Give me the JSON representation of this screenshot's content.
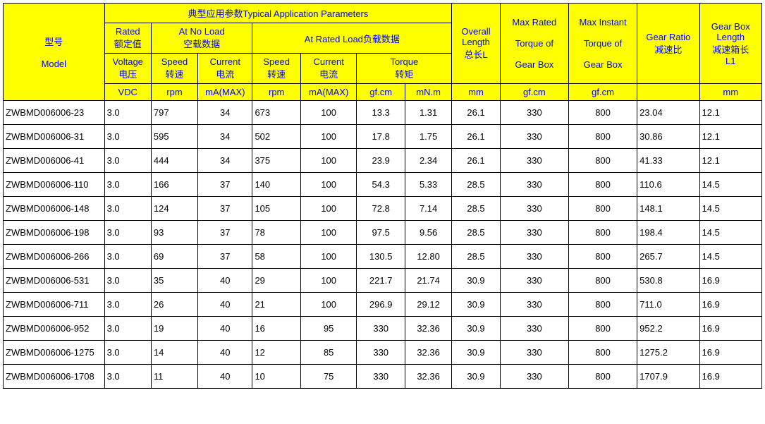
{
  "headers": {
    "model": "型号<br><br>Model",
    "typical": "典型应用参数Typical Application Parameters",
    "rated": "Rated<br>额定值",
    "noload": "At No Load<br>空载数据",
    "ratedload": "At Rated Load负载数据",
    "voltage": "Voltage<br>电压",
    "speed": "Speed<br>转速",
    "current": "Current<br>电流",
    "torque": "Torque<br>转矩",
    "overall": "Overall<br>Length<br>总长L",
    "maxrated": "Max Rated<br><br>Torque of<br><br>Gear Box",
    "maxinst": "Max Instant<br><br>Torque of<br><br>Gear Box",
    "ratio": "Gear Ratio<br>减速比",
    "boxlen": "Gear Box<br>Length<br>减速箱长<br>L1"
  },
  "units": {
    "vdc": "VDC",
    "rpm": "rpm",
    "mamax": "mA(MAX)",
    "gfcm": "gf.cm",
    "mnm": "mN.m",
    "mm": "mm"
  },
  "align": [
    "left",
    "left",
    "left",
    "center",
    "left",
    "center",
    "center",
    "center",
    "center",
    "center",
    "center",
    "left",
    "left"
  ],
  "rows": [
    [
      "ZWBMD006006-23",
      "3.0",
      "797",
      "34",
      "673",
      "100",
      "13.3",
      "1.31",
      "26.1",
      "330",
      "800",
      "23.04",
      "12.1"
    ],
    [
      "ZWBMD006006-31",
      "3.0",
      "595",
      "34",
      "502",
      "100",
      "17.8",
      "1.75",
      "26.1",
      "330",
      "800",
      "30.86",
      "12.1"
    ],
    [
      "ZWBMD006006-41",
      "3.0",
      "444",
      "34",
      "375",
      "100",
      "23.9",
      "2.34",
      "26.1",
      "330",
      "800",
      "41.33",
      "12.1"
    ],
    [
      "ZWBMD006006-110",
      "3.0",
      "166",
      "37",
      "140",
      "100",
      "54.3",
      "5.33",
      "28.5",
      "330",
      "800",
      "110.6",
      "14.5"
    ],
    [
      "ZWBMD006006-148",
      "3.0",
      "124",
      "37",
      "105",
      "100",
      "72.8",
      "7.14",
      "28.5",
      "330",
      "800",
      "148.1",
      "14.5"
    ],
    [
      "ZWBMD006006-198",
      "3.0",
      "93",
      "37",
      "78",
      "100",
      "97.5",
      "9.56",
      "28.5",
      "330",
      "800",
      "198.4",
      "14.5"
    ],
    [
      "ZWBMD006006-266",
      "3.0",
      "69",
      "37",
      "58",
      "100",
      "130.5",
      "12.80",
      "28.5",
      "330",
      "800",
      "265.7",
      "14.5"
    ],
    [
      "ZWBMD006006-531",
      "3.0",
      "35",
      "40",
      "29",
      "100",
      "221.7",
      "21.74",
      "30.9",
      "330",
      "800",
      "530.8",
      "16.9"
    ],
    [
      "ZWBMD006006-711",
      "3.0",
      "26",
      "40",
      "21",
      "100",
      "296.9",
      "29.12",
      "30.9",
      "330",
      "800",
      "711.0",
      "16.9"
    ],
    [
      "ZWBMD006006-952",
      "3.0",
      "19",
      "40",
      "16",
      "95",
      "330",
      "32.36",
      "30.9",
      "330",
      "800",
      "952.2",
      "16.9"
    ],
    [
      "ZWBMD006006-1275",
      "3.0",
      "14",
      "40",
      "12",
      "85",
      "330",
      "32.36",
      "30.9",
      "330",
      "800",
      "1275.2",
      "16.9"
    ],
    [
      "ZWBMD006006-1708",
      "3.0",
      "11",
      "40",
      "10",
      "75",
      "330",
      "32.36",
      "30.9",
      "330",
      "800",
      "1707.9",
      "16.9"
    ]
  ],
  "colnames": [
    "model-cell",
    "voltage-cell",
    "noload-speed-cell",
    "noload-current-cell",
    "rated-speed-cell",
    "rated-current-cell",
    "torque-gfcm-cell",
    "torque-mnm-cell",
    "overall-length-cell",
    "max-rated-torque-cell",
    "max-instant-torque-cell",
    "gear-ratio-cell",
    "gearbox-length-cell"
  ]
}
